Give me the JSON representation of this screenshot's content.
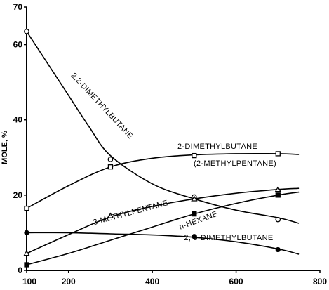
{
  "chart_data": {
    "type": "line",
    "title": "",
    "xlabel": "",
    "ylabel": "MOLE, %",
    "xlim": [
      100,
      800
    ],
    "ylim": [
      0,
      70
    ],
    "xticks": [
      100,
      200,
      400,
      600,
      800
    ],
    "yticks": [
      0,
      20,
      40,
      60,
      70
    ],
    "grid": false,
    "legend": "none",
    "series": [
      {
        "name": "2,2-DIMETHYLBUTANE",
        "marker": "circle-open",
        "points": [
          [
            100,
            63.5
          ],
          [
            300,
            29.5
          ],
          [
            500,
            19.5
          ],
          [
            700,
            13.5
          ]
        ],
        "curve": [
          [
            100,
            63.5
          ],
          [
            150,
            55
          ],
          [
            200,
            46.5
          ],
          [
            250,
            38
          ],
          [
            300,
            30.5
          ],
          [
            400,
            23
          ],
          [
            500,
            19
          ],
          [
            600,
            16
          ],
          [
            700,
            14
          ],
          [
            750,
            12.5
          ]
        ]
      },
      {
        "name": "2-DIMETHYLBUTANE",
        "marker": "square-open",
        "points": [
          [
            100,
            16.5
          ],
          [
            300,
            27.5
          ],
          [
            500,
            30.5
          ],
          [
            700,
            31
          ]
        ],
        "curve": [
          [
            100,
            16.5
          ],
          [
            200,
            22.5
          ],
          [
            300,
            27.5
          ],
          [
            400,
            29.8
          ],
          [
            500,
            30.7
          ],
          [
            600,
            31
          ],
          [
            700,
            31
          ],
          [
            750,
            30.8
          ]
        ]
      },
      {
        "name": "3-METHYLPENTANE",
        "marker": "triangle-open",
        "points": [
          [
            100,
            4.5
          ],
          [
            300,
            14.5
          ],
          [
            500,
            19
          ],
          [
            700,
            21.5
          ]
        ],
        "curve": [
          [
            100,
            4.5
          ],
          [
            200,
            9.5
          ],
          [
            300,
            14.2
          ],
          [
            400,
            17
          ],
          [
            500,
            19
          ],
          [
            600,
            20.5
          ],
          [
            700,
            21.5
          ],
          [
            750,
            21.8
          ]
        ]
      },
      {
        "name": "n-HEXANE",
        "marker": "square-filled",
        "points": [
          [
            100,
            1.5
          ],
          [
            500,
            15
          ],
          [
            700,
            20
          ]
        ],
        "curve": [
          [
            100,
            1.5
          ],
          [
            200,
            4.5
          ],
          [
            300,
            8
          ],
          [
            400,
            11.5
          ],
          [
            500,
            15
          ],
          [
            600,
            17.8
          ],
          [
            700,
            20
          ],
          [
            750,
            20.8
          ]
        ]
      },
      {
        "name": "2, 3-DIMETHYLBUTANE",
        "marker": "circle-filled",
        "points": [
          [
            100,
            10
          ],
          [
            500,
            9
          ],
          [
            700,
            5.5
          ]
        ],
        "curve": [
          [
            100,
            10
          ],
          [
            200,
            10
          ],
          [
            300,
            9.7
          ],
          [
            400,
            9.4
          ],
          [
            500,
            8.8
          ],
          [
            600,
            7.6
          ],
          [
            700,
            5.7
          ],
          [
            750,
            4.3
          ]
        ]
      }
    ],
    "annotations": [
      {
        "text": "2,2-DIMETHYLBUTANE",
        "series": 0
      },
      {
        "text": "2-DIMETHYLBUTANE",
        "series": 1
      },
      {
        "text": "(2-METHYLPENTANE)",
        "series": 1
      },
      {
        "text": "3-METHYLPENTANE",
        "series": 2
      },
      {
        "text": "n-HEXANE",
        "series": 3
      },
      {
        "text": "2, 3-DIMETHYLBUTANE",
        "series": 4
      }
    ]
  }
}
